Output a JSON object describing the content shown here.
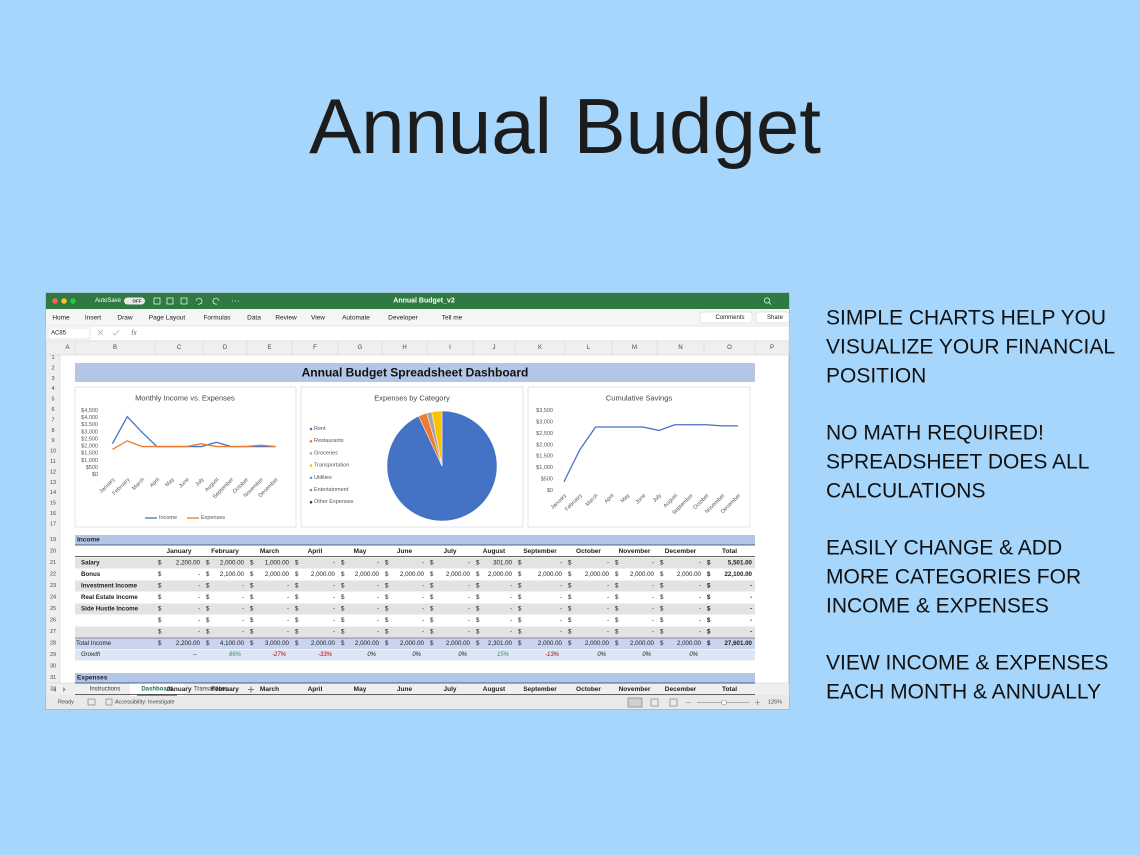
{
  "title": "Annual Budget",
  "features": [
    [
      "SIMPLE CHARTS HELP YOU",
      "VISUALIZE YOUR FINANCIAL",
      "POSITION"
    ],
    [
      "NO MATH REQUIRED!",
      "SPREADSHEET DOES ALL",
      "CALCULATIONS"
    ],
    [
      "EASILY CHANGE & ADD",
      "MORE CATEGORIES FOR",
      "INCOME & EXPENSES"
    ],
    [
      "VIEW INCOME & EXPENSES",
      "EACH MONTH & ANNUALLY"
    ]
  ],
  "window": {
    "autosave": "AutoSave",
    "autosave_state": "OFF",
    "file_name": "Annual Budget_v2",
    "ribbon_tabs": [
      "Home",
      "Insert",
      "Draw",
      "Page Layout",
      "Formulas",
      "Data",
      "Review",
      "View",
      "Automate",
      "Developer",
      "Tell me"
    ],
    "comments": "Comments",
    "share": "Share",
    "name_box": "AC85",
    "fx": "fx",
    "columns": [
      "A",
      "B",
      "C",
      "D",
      "E",
      "F",
      "G",
      "H",
      "I",
      "J",
      "K",
      "L",
      "M",
      "N",
      "O",
      "P"
    ],
    "rows": [
      1,
      2,
      3,
      4,
      5,
      6,
      7,
      8,
      9,
      10,
      11,
      12,
      13,
      14,
      15,
      16,
      17,
      19,
      20,
      21,
      22,
      23,
      24,
      25,
      26,
      27,
      28,
      29,
      30,
      31,
      32
    ],
    "sheet_tabs": [
      "Instructions",
      "Dashboard",
      "Transactions"
    ],
    "active_sheet": 1,
    "status": "Ready",
    "accessibility": "Accessibility: Investigate",
    "zoom": "125%"
  },
  "dashboard_title": "Annual Budget Spreadsheet Dashboard",
  "chart_data": [
    {
      "type": "line",
      "title": "Monthly Income vs. Expenses",
      "categories": [
        "January",
        "February",
        "March",
        "April",
        "May",
        "June",
        "July",
        "August",
        "September",
        "October",
        "November",
        "December"
      ],
      "series": [
        {
          "name": "Income",
          "color": "#4472c4",
          "values": [
            2200,
            4100,
            3000,
            2000,
            2000,
            2000,
            2000,
            2301,
            2000,
            2000,
            2000,
            2000
          ]
        },
        {
          "name": "Expenses",
          "color": "#ed7d31",
          "values": [
            1800,
            2400,
            2000,
            2000,
            2000,
            2000,
            2200,
            2000,
            2000,
            2000,
            2100,
            2000
          ]
        }
      ],
      "ylim": [
        0,
        4500
      ],
      "yticks": [
        {
          "value": 0,
          "label": "$0"
        },
        {
          "value": 500,
          "label": "$500"
        },
        {
          "value": 1000,
          "label": "$1,000"
        },
        {
          "value": 1500,
          "label": "$1,500"
        },
        {
          "value": 2000,
          "label": "$2,000"
        },
        {
          "value": 2500,
          "label": "$2,500"
        },
        {
          "value": 3000,
          "label": "$3,000"
        },
        {
          "value": 3500,
          "label": "$3,500"
        },
        {
          "value": 4000,
          "label": "$4,000"
        },
        {
          "value": 4500,
          "label": "$4,500"
        }
      ]
    },
    {
      "type": "pie",
      "title": "Expenses by Category",
      "categories": [
        "Rent",
        "Restaurants",
        "Groceries",
        "Transportation",
        "Utilities",
        "Entertainment",
        "Other Expenses"
      ],
      "values": [
        93,
        2.5,
        1.5,
        3,
        0,
        0,
        0
      ],
      "colors": [
        "#4472c4",
        "#ed7d31",
        "#a5a5a5",
        "#ffc000",
        "#5b9bd5",
        "#70ad47",
        "#264478"
      ]
    },
    {
      "type": "line",
      "title": "Cumulative Savings",
      "categories": [
        "January",
        "February",
        "March",
        "April",
        "May",
        "June",
        "July",
        "August",
        "September",
        "October",
        "November",
        "December"
      ],
      "color": "#4472c4",
      "values": [
        400,
        1800,
        2800,
        2800,
        2800,
        2800,
        2650,
        2900,
        2900,
        2900,
        2850,
        2850
      ],
      "ylim": [
        0,
        3500
      ],
      "yticks": [
        {
          "value": 0,
          "label": "$0"
        },
        {
          "value": 500,
          "label": "$500"
        },
        {
          "value": 1000,
          "label": "$1,000"
        },
        {
          "value": 1500,
          "label": "$1,500"
        },
        {
          "value": 2000,
          "label": "$2,000"
        },
        {
          "value": 2500,
          "label": "$2,500"
        },
        {
          "value": 3000,
          "label": "$3,000"
        },
        {
          "value": 3500,
          "label": "$3,500"
        }
      ]
    }
  ],
  "table": {
    "currency": "$",
    "months": [
      "January",
      "February",
      "March",
      "April",
      "May",
      "June",
      "July",
      "August",
      "September",
      "October",
      "November",
      "December"
    ],
    "total_header": "Total",
    "sections": [
      {
        "title": "Income",
        "rows": [
          {
            "label": "Salary",
            "cells": [
              "2,200.00",
              "2,000.00",
              "1,000.00",
              "-",
              "-",
              "-",
              "-",
              "301.00",
              "-",
              "-",
              "-",
              "-",
              "5,501.00"
            ]
          },
          {
            "label": "Bonus",
            "cells": [
              "-",
              "2,100.00",
              "2,000.00",
              "2,000.00",
              "2,000.00",
              "2,000.00",
              "2,000.00",
              "2,000.00",
              "2,000.00",
              "2,000.00",
              "2,000.00",
              "2,000.00",
              "22,100.00"
            ]
          },
          {
            "label": "Investment Income",
            "cells": [
              "-",
              "-",
              "-",
              "-",
              "-",
              "-",
              "-",
              "-",
              "-",
              "-",
              "-",
              "-",
              "-"
            ]
          },
          {
            "label": "Real Estate Income",
            "cells": [
              "-",
              "-",
              "-",
              "-",
              "-",
              "-",
              "-",
              "-",
              "-",
              "-",
              "-",
              "-",
              "-"
            ]
          },
          {
            "label": "Side Hustle Income",
            "cells": [
              "-",
              "-",
              "-",
              "-",
              "-",
              "-",
              "-",
              "-",
              "-",
              "-",
              "-",
              "-",
              "-"
            ]
          },
          {
            "label": null,
            "cells": [
              "-",
              "-",
              "-",
              "-",
              "-",
              "-",
              "-",
              "-",
              "-",
              "-",
              "-",
              "-",
              "-"
            ]
          },
          {
            "label": null,
            "cells": [
              "-",
              "-",
              "-",
              "-",
              "-",
              "-",
              "-",
              "-",
              "-",
              "-",
              "-",
              "-",
              "-"
            ]
          }
        ],
        "total": {
          "label": "Total Income",
          "cells": [
            "2,200.00",
            "4,100.00",
            "3,000.00",
            "2,000.00",
            "2,000.00",
            "2,000.00",
            "2,000.00",
            "2,301.00",
            "2,000.00",
            "2,000.00",
            "2,000.00",
            "2,000.00",
            "27,601.00"
          ]
        },
        "growth": {
          "label": "Growth",
          "cells": [
            "--",
            "86%",
            "-27%",
            "-33%",
            "0%",
            "0%",
            "0%",
            "15%",
            "-13%",
            "0%",
            "0%",
            "0%"
          ]
        }
      },
      {
        "title": "Expenses"
      }
    ]
  }
}
